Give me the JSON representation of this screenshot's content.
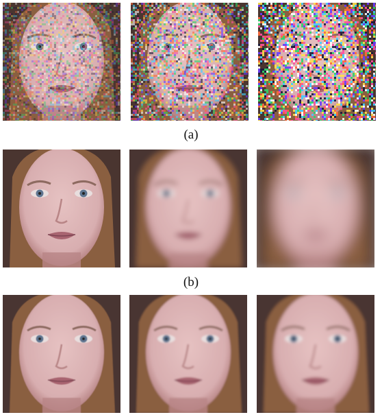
{
  "figure": {
    "captions": [
      "(a)",
      "(b)"
    ],
    "rows": [
      {
        "name": "noise",
        "panels": [
          {
            "name": "face-noise-low",
            "noise_level": 0.35,
            "blur": 0
          },
          {
            "name": "face-noise-medium",
            "noise_level": 0.6,
            "blur": 0
          },
          {
            "name": "face-noise-high",
            "noise_level": 0.9,
            "blur": 0
          }
        ]
      },
      {
        "name": "blur",
        "panels": [
          {
            "name": "face-blur-none",
            "noise_level": 0,
            "blur": 0
          },
          {
            "name": "face-blur-medium",
            "noise_level": 0,
            "blur": 4
          },
          {
            "name": "face-blur-heavy",
            "noise_level": 0,
            "blur": 10
          }
        ]
      },
      {
        "name": "restored",
        "panels": [
          {
            "name": "face-restored-1",
            "noise_level": 0,
            "blur": 0.6
          },
          {
            "name": "face-restored-2",
            "noise_level": 0,
            "blur": 1.2
          },
          {
            "name": "face-restored-3",
            "noise_level": 0,
            "blur": 2
          }
        ]
      }
    ],
    "colors": {
      "skin": "#d8aeb0",
      "skin_shadow": "#b88586",
      "hair": "#8a5f40",
      "background_dark": "#4a3530",
      "eye": "#5f7590",
      "lip": "#a86470"
    }
  }
}
